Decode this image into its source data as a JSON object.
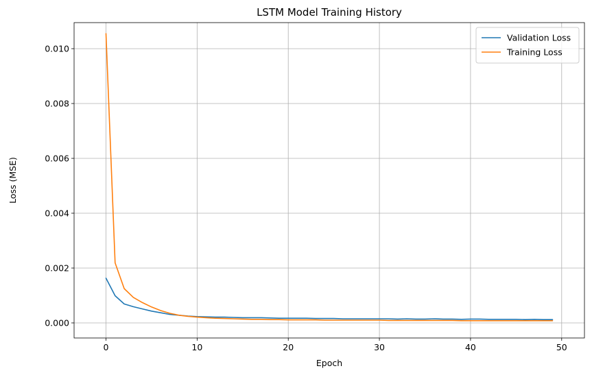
{
  "chart_data": {
    "type": "line",
    "title": "LSTM Model Training History",
    "xlabel": "Epoch",
    "ylabel": "Loss (MSE)",
    "xlim": [
      -3.5,
      52.5
    ],
    "ylim": [
      -0.00055,
      0.01095
    ],
    "xticks": [
      0,
      10,
      20,
      30,
      40,
      50
    ],
    "yticks": [
      0.0,
      0.002,
      0.004,
      0.006,
      0.008,
      0.01
    ],
    "ytick_labels": [
      "0.000",
      "0.002",
      "0.004",
      "0.006",
      "0.008",
      "0.010"
    ],
    "grid": true,
    "legend_position": "top-right",
    "x": [
      0,
      1,
      2,
      3,
      4,
      5,
      6,
      7,
      8,
      9,
      10,
      11,
      12,
      13,
      14,
      15,
      16,
      17,
      18,
      19,
      20,
      21,
      22,
      23,
      24,
      25,
      26,
      27,
      28,
      29,
      30,
      31,
      32,
      33,
      34,
      35,
      36,
      37,
      38,
      39,
      40,
      41,
      42,
      43,
      44,
      45,
      46,
      47,
      48,
      49
    ],
    "series": [
      {
        "name": "Validation Loss",
        "color": "#1f77b4",
        "values": [
          0.00163,
          0.00099,
          0.00069,
          0.00059,
          0.00051,
          0.00043,
          0.00037,
          0.00031,
          0.00028,
          0.00025,
          0.00023,
          0.00022,
          0.00021,
          0.00021,
          0.0002,
          0.00019,
          0.00019,
          0.00019,
          0.00018,
          0.00017,
          0.00017,
          0.00017,
          0.00017,
          0.00016,
          0.00016,
          0.00016,
          0.00015,
          0.00015,
          0.00015,
          0.00015,
          0.00015,
          0.00015,
          0.00014,
          0.00015,
          0.00014,
          0.00014,
          0.00015,
          0.00014,
          0.00014,
          0.00013,
          0.00014,
          0.00014,
          0.00013,
          0.00013,
          0.00013,
          0.00013,
          0.00012,
          0.00013,
          0.00012,
          0.00012
        ]
      },
      {
        "name": "Training Loss",
        "color": "#ff7f0e",
        "values": [
          0.01055,
          0.00219,
          0.00125,
          0.00093,
          0.00074,
          0.00058,
          0.00045,
          0.00035,
          0.00028,
          0.00024,
          0.00021,
          0.00019,
          0.00017,
          0.00016,
          0.00015,
          0.00014,
          0.00013,
          0.00013,
          0.00012,
          0.00012,
          0.00011,
          0.00011,
          0.00011,
          0.00011,
          0.0001,
          0.0001,
          0.0001,
          0.0001,
          0.0001,
          0.0001,
          0.0001,
          9e-05,
          9e-05,
          9e-05,
          9e-05,
          9e-05,
          9e-05,
          9e-05,
          9e-05,
          8e-05,
          8e-05,
          8e-05,
          8e-05,
          8e-05,
          8e-05,
          8e-05,
          8e-05,
          8e-05,
          8e-05,
          8e-05
        ]
      }
    ]
  }
}
